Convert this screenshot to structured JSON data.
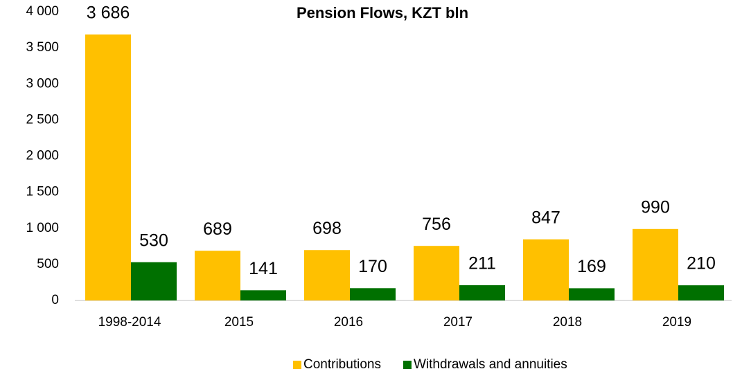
{
  "chart_data": {
    "type": "bar",
    "title": "Pension Flows, KZT bln",
    "categories": [
      "1998-2014",
      "2015",
      "2016",
      "2017",
      "2018",
      "2019"
    ],
    "series": [
      {
        "name": "Contributions",
        "color": "#ffc000",
        "values": [
          3686,
          689,
          698,
          756,
          847,
          990
        ],
        "value_labels": [
          "3 686",
          "689",
          "698",
          "756",
          "847",
          "990"
        ]
      },
      {
        "name": "Withdrawals and annuities",
        "color": "#007000",
        "values": [
          530,
          141,
          170,
          211,
          169,
          210
        ],
        "value_labels": [
          "530",
          "141",
          "170",
          "211",
          "169",
          "210"
        ]
      }
    ],
    "ylim": [
      0,
      4000
    ],
    "yticks": [
      0,
      500,
      {
        "value": 1000,
        "label": "1 000"
      },
      {
        "value": 1500,
        "label": "1 500"
      },
      {
        "value": 2000,
        "label": "2 000"
      },
      {
        "value": 2500,
        "label": "2 500"
      },
      {
        "value": 3000,
        "label": "3 000"
      },
      {
        "value": 3500,
        "label": "3 500"
      },
      {
        "value": 4000,
        "label": "4 000"
      }
    ],
    "grid": false,
    "legend": "bottom"
  }
}
